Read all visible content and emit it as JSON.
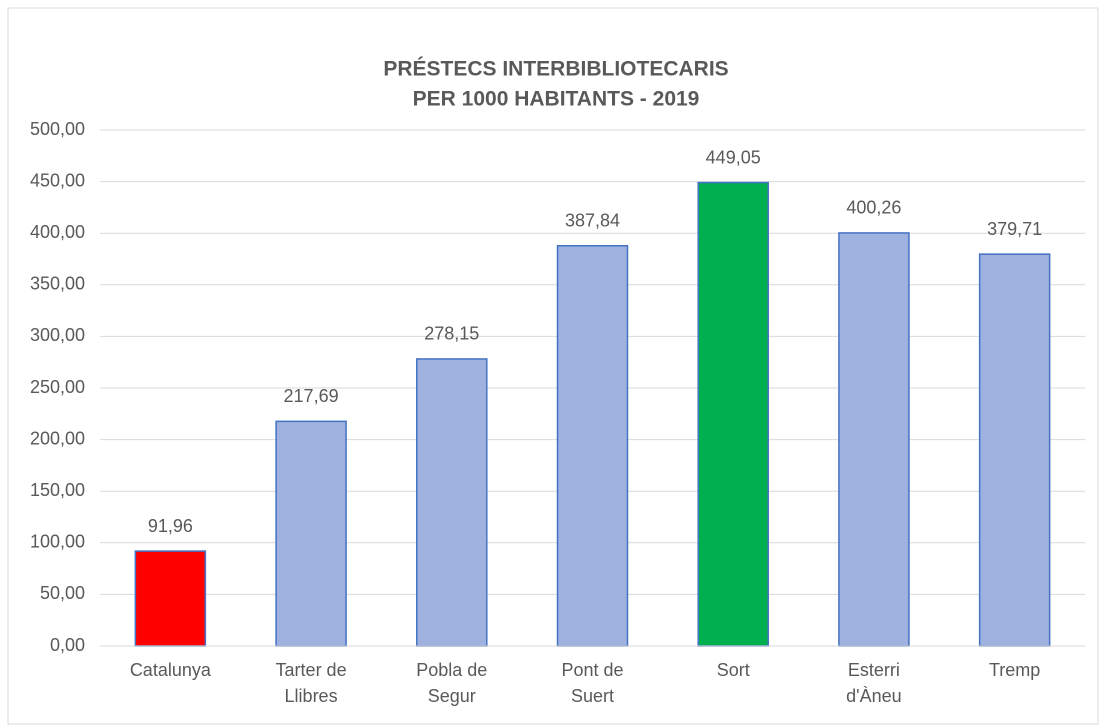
{
  "chart_data": {
    "type": "bar",
    "title": [
      "PRÉSTECS INTERBIBLIOTECARIS",
      "PER 1000 HABITANTS - 2019"
    ],
    "categories": [
      "Catalunya",
      "Tarter de Llibres",
      "Pobla de Segur",
      "Pont de Suert",
      "Sort",
      "Esterri d'Àneu",
      "Tremp"
    ],
    "values": [
      91.96,
      217.69,
      278.15,
      387.84,
      449.05,
      400.26,
      379.71
    ],
    "value_labels": [
      "91,96",
      "217,69",
      "278,15",
      "387,84",
      "449,05",
      "400,26",
      "379,71"
    ],
    "colors": [
      "#ff0000",
      "#9fb1df",
      "#9fb1df",
      "#9fb1df",
      "#00b050",
      "#9fb1df",
      "#9fb1df"
    ],
    "ylim": [
      0,
      500
    ],
    "yticks": [
      {
        "value": 0,
        "label": "0,00"
      },
      {
        "value": 50,
        "label": "50,00"
      },
      {
        "value": 100,
        "label": "100,00"
      },
      {
        "value": 150,
        "label": "150,00"
      },
      {
        "value": 200,
        "label": "200,00"
      },
      {
        "value": 250,
        "label": "250,00"
      },
      {
        "value": 300,
        "label": "300,00"
      },
      {
        "value": 350,
        "label": "350,00"
      },
      {
        "value": 400,
        "label": "400,00"
      },
      {
        "value": 450,
        "label": "450,00"
      },
      {
        "value": 500,
        "label": "500,00"
      }
    ],
    "grid": true
  }
}
